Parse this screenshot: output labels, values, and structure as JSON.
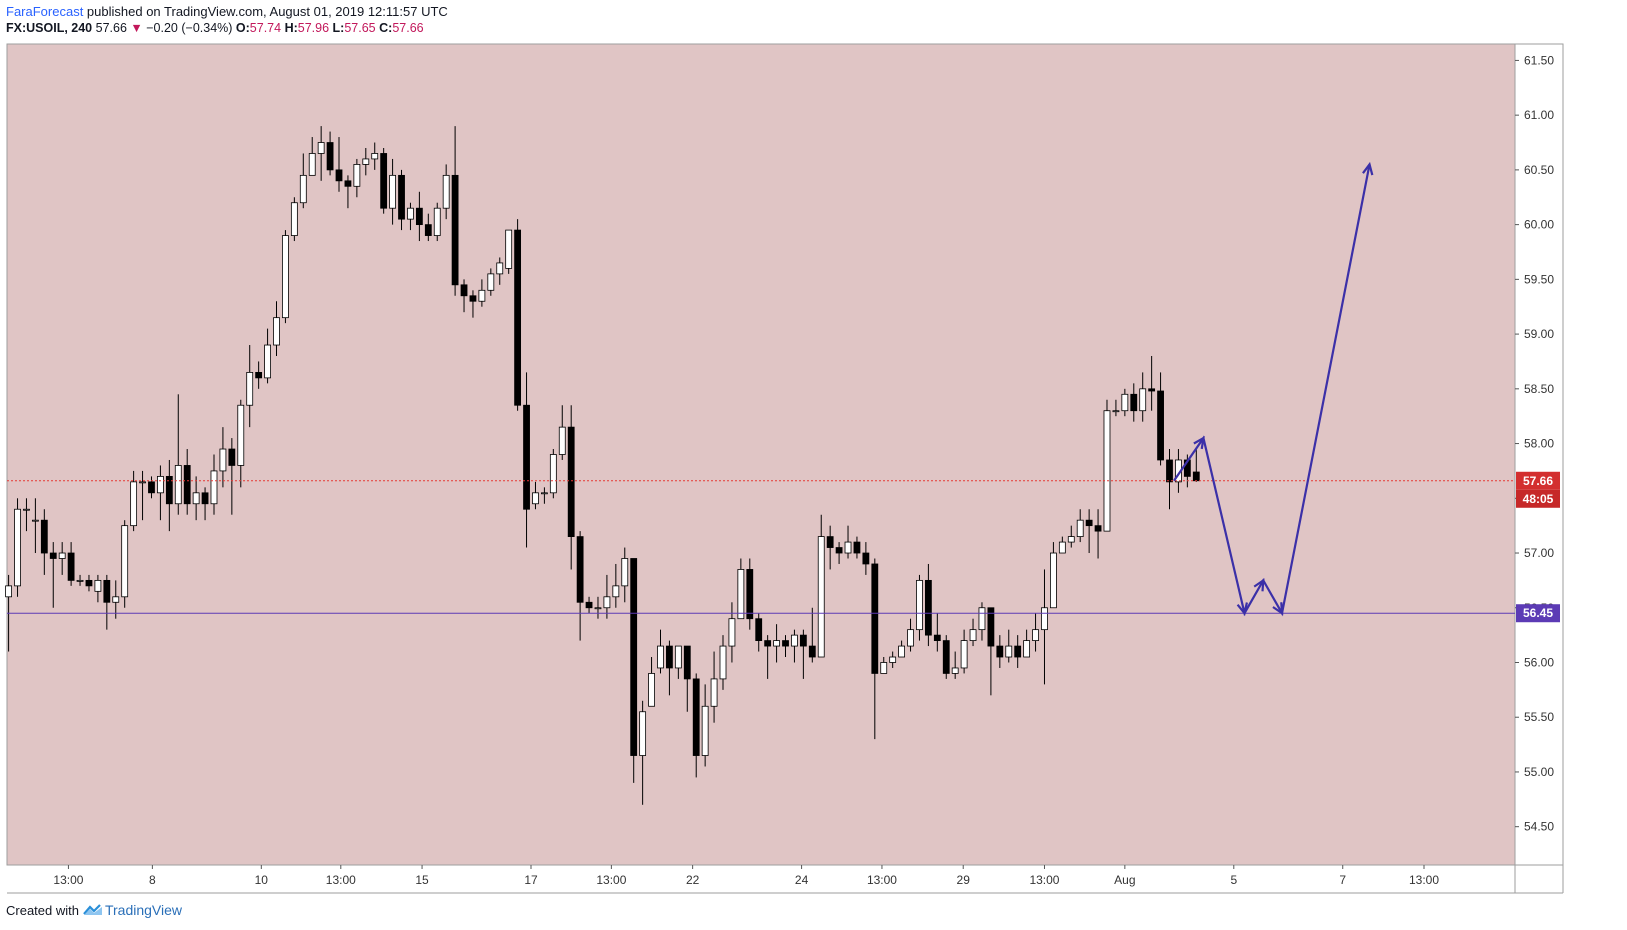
{
  "header": {
    "author": "FaraForecast",
    "published_text": " published on TradingView.com, August 01, 2019 12:11:57 UTC",
    "symbol": "FX:USOIL, 240",
    "last": "57.66",
    "change_arrow": "▼",
    "change": "−0.20 (−0.34%)",
    "o_label": "O:",
    "o_val": "57.74",
    "h_label": "H:",
    "h_val": "57.96",
    "l_label": "L:",
    "l_val": "57.65",
    "c_label": "C:",
    "c_val": "57.66"
  },
  "footer": {
    "created_with": "Created with",
    "brand": "TradingView"
  },
  "colors": {
    "pane_bg": "#e0c5c5",
    "up_fill": "#ffffff",
    "down_fill": "#000000",
    "price_line": "#e53935",
    "support_line": "#5c3bb5",
    "arrow_path": "#3b30a8",
    "last_label_bg": "#d32f2f",
    "countdown_label_bg": "#c62828",
    "support_label_bg": "#5c3bb5"
  },
  "chart_data": {
    "type": "candlestick",
    "symbol": "FX:USOIL",
    "interval": "240",
    "ylim": [
      54.15,
      61.65
    ],
    "y_ticks": [
      "61.50",
      "61.00",
      "60.50",
      "60.00",
      "59.50",
      "59.00",
      "58.50",
      "58.00",
      "57.50",
      "57.00",
      "56.50",
      "56.00",
      "55.50",
      "55.00",
      "54.50"
    ],
    "x_ticks": [
      "13:00",
      "8",
      "10",
      "13:00",
      "15",
      "17",
      "13:00",
      "22",
      "24",
      "13:00",
      "29",
      "13:00",
      "Aug",
      "5",
      "7",
      "13:00"
    ],
    "x_tick_bar_index": [
      6.7,
      16.1,
      28.3,
      37.2,
      46.3,
      58.5,
      67.5,
      76.6,
      88.8,
      97.8,
      106.9,
      116.0,
      125.0,
      137.2,
      149.4,
      158.5
    ],
    "last_price_label": "57.66",
    "countdown_label": "48:05",
    "support_level": 56.45,
    "support_label": "56.45",
    "candles": [
      [
        56.6,
        56.7,
        56.1,
        56.8
      ],
      [
        56.7,
        57.4,
        56.6,
        57.5
      ],
      [
        57.4,
        57.4,
        57.2,
        57.5
      ],
      [
        57.3,
        57.3,
        57.0,
        57.5
      ],
      [
        57.3,
        57.0,
        56.8,
        57.4
      ],
      [
        57.0,
        56.95,
        56.5,
        57.1
      ],
      [
        56.95,
        57.0,
        56.8,
        57.1
      ],
      [
        57.0,
        56.75,
        56.7,
        57.1
      ],
      [
        56.75,
        56.75,
        56.7,
        56.8
      ],
      [
        56.75,
        56.7,
        56.65,
        56.8
      ],
      [
        56.65,
        56.75,
        56.55,
        56.8
      ],
      [
        56.75,
        56.55,
        56.3,
        56.8
      ],
      [
        56.55,
        56.6,
        56.4,
        56.75
      ],
      [
        56.6,
        57.25,
        56.5,
        57.3
      ],
      [
        57.25,
        57.65,
        57.2,
        57.75
      ],
      [
        57.65,
        57.65,
        57.3,
        57.75
      ],
      [
        57.65,
        57.55,
        57.5,
        57.7
      ],
      [
        57.55,
        57.7,
        57.3,
        57.8
      ],
      [
        57.7,
        57.45,
        57.2,
        57.85
      ],
      [
        57.45,
        57.8,
        57.35,
        58.45
      ],
      [
        57.8,
        57.45,
        57.35,
        57.95
      ],
      [
        57.45,
        57.55,
        57.3,
        57.7
      ],
      [
        57.55,
        57.45,
        57.3,
        57.6
      ],
      [
        57.45,
        57.75,
        57.35,
        57.9
      ],
      [
        57.75,
        57.95,
        57.6,
        58.15
      ],
      [
        57.95,
        57.8,
        57.35,
        58.05
      ],
      [
        57.8,
        58.35,
        57.6,
        58.4
      ],
      [
        58.35,
        58.65,
        58.15,
        58.9
      ],
      [
        58.65,
        58.6,
        58.5,
        58.75
      ],
      [
        58.6,
        58.9,
        58.55,
        59.05
      ],
      [
        58.9,
        59.15,
        58.8,
        59.3
      ],
      [
        59.15,
        59.9,
        59.1,
        59.95
      ],
      [
        59.9,
        60.2,
        59.85,
        60.25
      ],
      [
        60.2,
        60.45,
        60.15,
        60.65
      ],
      [
        60.45,
        60.65,
        60.45,
        60.8
      ],
      [
        60.65,
        60.75,
        60.4,
        60.9
      ],
      [
        60.75,
        60.5,
        60.45,
        60.85
      ],
      [
        60.5,
        60.4,
        60.3,
        60.8
      ],
      [
        60.4,
        60.35,
        60.15,
        60.45
      ],
      [
        60.35,
        60.55,
        60.25,
        60.6
      ],
      [
        60.55,
        60.6,
        60.45,
        60.7
      ],
      [
        60.6,
        60.65,
        60.5,
        60.75
      ],
      [
        60.65,
        60.15,
        60.1,
        60.7
      ],
      [
        60.15,
        60.45,
        60.0,
        60.6
      ],
      [
        60.45,
        60.05,
        59.95,
        60.5
      ],
      [
        60.05,
        60.15,
        59.95,
        60.2
      ],
      [
        60.15,
        60.0,
        59.85,
        60.3
      ],
      [
        60.0,
        59.9,
        59.85,
        60.1
      ],
      [
        59.9,
        60.15,
        59.85,
        60.2
      ],
      [
        60.15,
        60.45,
        60.05,
        60.55
      ],
      [
        60.45,
        59.45,
        59.35,
        60.9
      ],
      [
        59.45,
        59.35,
        59.2,
        59.5
      ],
      [
        59.35,
        59.3,
        59.15,
        59.4
      ],
      [
        59.3,
        59.4,
        59.25,
        59.5
      ],
      [
        59.4,
        59.55,
        59.35,
        59.6
      ],
      [
        59.55,
        59.65,
        59.45,
        59.7
      ],
      [
        59.6,
        59.95,
        59.55,
        59.95
      ],
      [
        59.95,
        58.35,
        58.3,
        60.05
      ],
      [
        58.35,
        57.4,
        57.05,
        58.65
      ],
      [
        57.45,
        57.55,
        57.4,
        57.65
      ],
      [
        57.55,
        57.55,
        57.45,
        57.6
      ],
      [
        57.55,
        57.9,
        57.5,
        57.95
      ],
      [
        57.9,
        58.15,
        57.85,
        58.35
      ],
      [
        58.15,
        57.15,
        56.85,
        58.35
      ],
      [
        57.15,
        56.55,
        56.2,
        57.2
      ],
      [
        56.55,
        56.5,
        56.45,
        56.6
      ],
      [
        56.5,
        56.5,
        56.4,
        56.6
      ],
      [
        56.5,
        56.6,
        56.4,
        56.8
      ],
      [
        56.6,
        56.7,
        56.5,
        56.9
      ],
      [
        56.7,
        56.95,
        56.55,
        57.05
      ],
      [
        56.95,
        55.15,
        54.9,
        56.95
      ],
      [
        55.15,
        55.55,
        54.7,
        55.65
      ],
      [
        55.6,
        55.9,
        55.6,
        56.05
      ],
      [
        55.95,
        56.15,
        55.9,
        56.3
      ],
      [
        56.15,
        55.95,
        55.7,
        56.2
      ],
      [
        55.95,
        56.15,
        55.85,
        56.15
      ],
      [
        56.15,
        55.85,
        55.55,
        56.15
      ],
      [
        55.85,
        55.15,
        54.95,
        55.9
      ],
      [
        55.15,
        55.6,
        55.05,
        55.8
      ],
      [
        55.6,
        55.85,
        55.45,
        56.1
      ],
      [
        55.85,
        56.15,
        55.75,
        56.25
      ],
      [
        56.15,
        56.4,
        56.0,
        56.55
      ],
      [
        56.4,
        56.85,
        56.4,
        56.95
      ],
      [
        56.85,
        56.4,
        56.3,
        56.95
      ],
      [
        56.4,
        56.2,
        56.1,
        56.45
      ],
      [
        56.2,
        56.15,
        55.85,
        56.25
      ],
      [
        56.15,
        56.2,
        56.0,
        56.35
      ],
      [
        56.2,
        56.15,
        56.05,
        56.25
      ],
      [
        56.15,
        56.25,
        56.0,
        56.3
      ],
      [
        56.25,
        56.15,
        55.85,
        56.3
      ],
      [
        56.15,
        56.05,
        56.0,
        56.5
      ],
      [
        56.05,
        57.15,
        56.05,
        57.35
      ],
      [
        57.15,
        57.05,
        56.85,
        57.25
      ],
      [
        57.05,
        57.0,
        56.9,
        57.1
      ],
      [
        57.0,
        57.1,
        56.95,
        57.25
      ],
      [
        57.1,
        57.0,
        56.95,
        57.15
      ],
      [
        57.0,
        56.9,
        56.8,
        57.1
      ],
      [
        56.9,
        55.9,
        55.3,
        56.95
      ],
      [
        55.9,
        56.0,
        55.9,
        56.05
      ],
      [
        56.0,
        56.05,
        55.95,
        56.1
      ],
      [
        56.05,
        56.15,
        56.05,
        56.2
      ],
      [
        56.15,
        56.3,
        56.1,
        56.4
      ],
      [
        56.3,
        56.75,
        56.2,
        56.8
      ],
      [
        56.75,
        56.25,
        56.15,
        56.9
      ],
      [
        56.25,
        56.2,
        56.1,
        56.45
      ],
      [
        56.2,
        55.9,
        55.85,
        56.25
      ],
      [
        55.9,
        55.95,
        55.85,
        56.1
      ],
      [
        55.95,
        56.2,
        55.9,
        56.3
      ],
      [
        56.2,
        56.3,
        56.15,
        56.4
      ],
      [
        56.3,
        56.5,
        56.2,
        56.55
      ],
      [
        56.5,
        56.15,
        55.7,
        56.5
      ],
      [
        56.15,
        56.05,
        55.95,
        56.25
      ],
      [
        56.05,
        56.15,
        56.0,
        56.3
      ],
      [
        56.15,
        56.05,
        55.95,
        56.25
      ],
      [
        56.05,
        56.2,
        56.05,
        56.3
      ],
      [
        56.2,
        56.3,
        56.1,
        56.45
      ],
      [
        56.3,
        56.5,
        55.8,
        56.85
      ],
      [
        56.5,
        57.0,
        56.5,
        57.1
      ],
      [
        57.0,
        57.1,
        57.0,
        57.15
      ],
      [
        57.1,
        57.15,
        57.05,
        57.25
      ],
      [
        57.15,
        57.3,
        57.1,
        57.4
      ],
      [
        57.3,
        57.25,
        57.0,
        57.4
      ],
      [
        57.25,
        57.2,
        56.95,
        57.4
      ],
      [
        57.2,
        58.3,
        57.2,
        58.4
      ],
      [
        58.3,
        58.3,
        58.25,
        58.4
      ],
      [
        58.3,
        58.45,
        58.25,
        58.5
      ],
      [
        58.45,
        58.3,
        58.2,
        58.55
      ],
      [
        58.3,
        58.5,
        58.2,
        58.65
      ],
      [
        58.5,
        58.48,
        58.3,
        58.8
      ],
      [
        58.48,
        57.85,
        57.8,
        58.65
      ],
      [
        57.85,
        57.65,
        57.4,
        57.95
      ],
      [
        57.65,
        57.85,
        57.55,
        57.95
      ],
      [
        57.85,
        57.7,
        57.6,
        57.9
      ],
      [
        57.74,
        57.66,
        57.65,
        57.96
      ]
    ],
    "projection_path": [
      [
        130.5,
        57.66
      ],
      [
        133.8,
        58.05
      ],
      [
        138.4,
        56.45
      ],
      [
        140.5,
        56.75
      ],
      [
        142.6,
        56.45
      ],
      [
        152.4,
        60.55
      ]
    ]
  }
}
